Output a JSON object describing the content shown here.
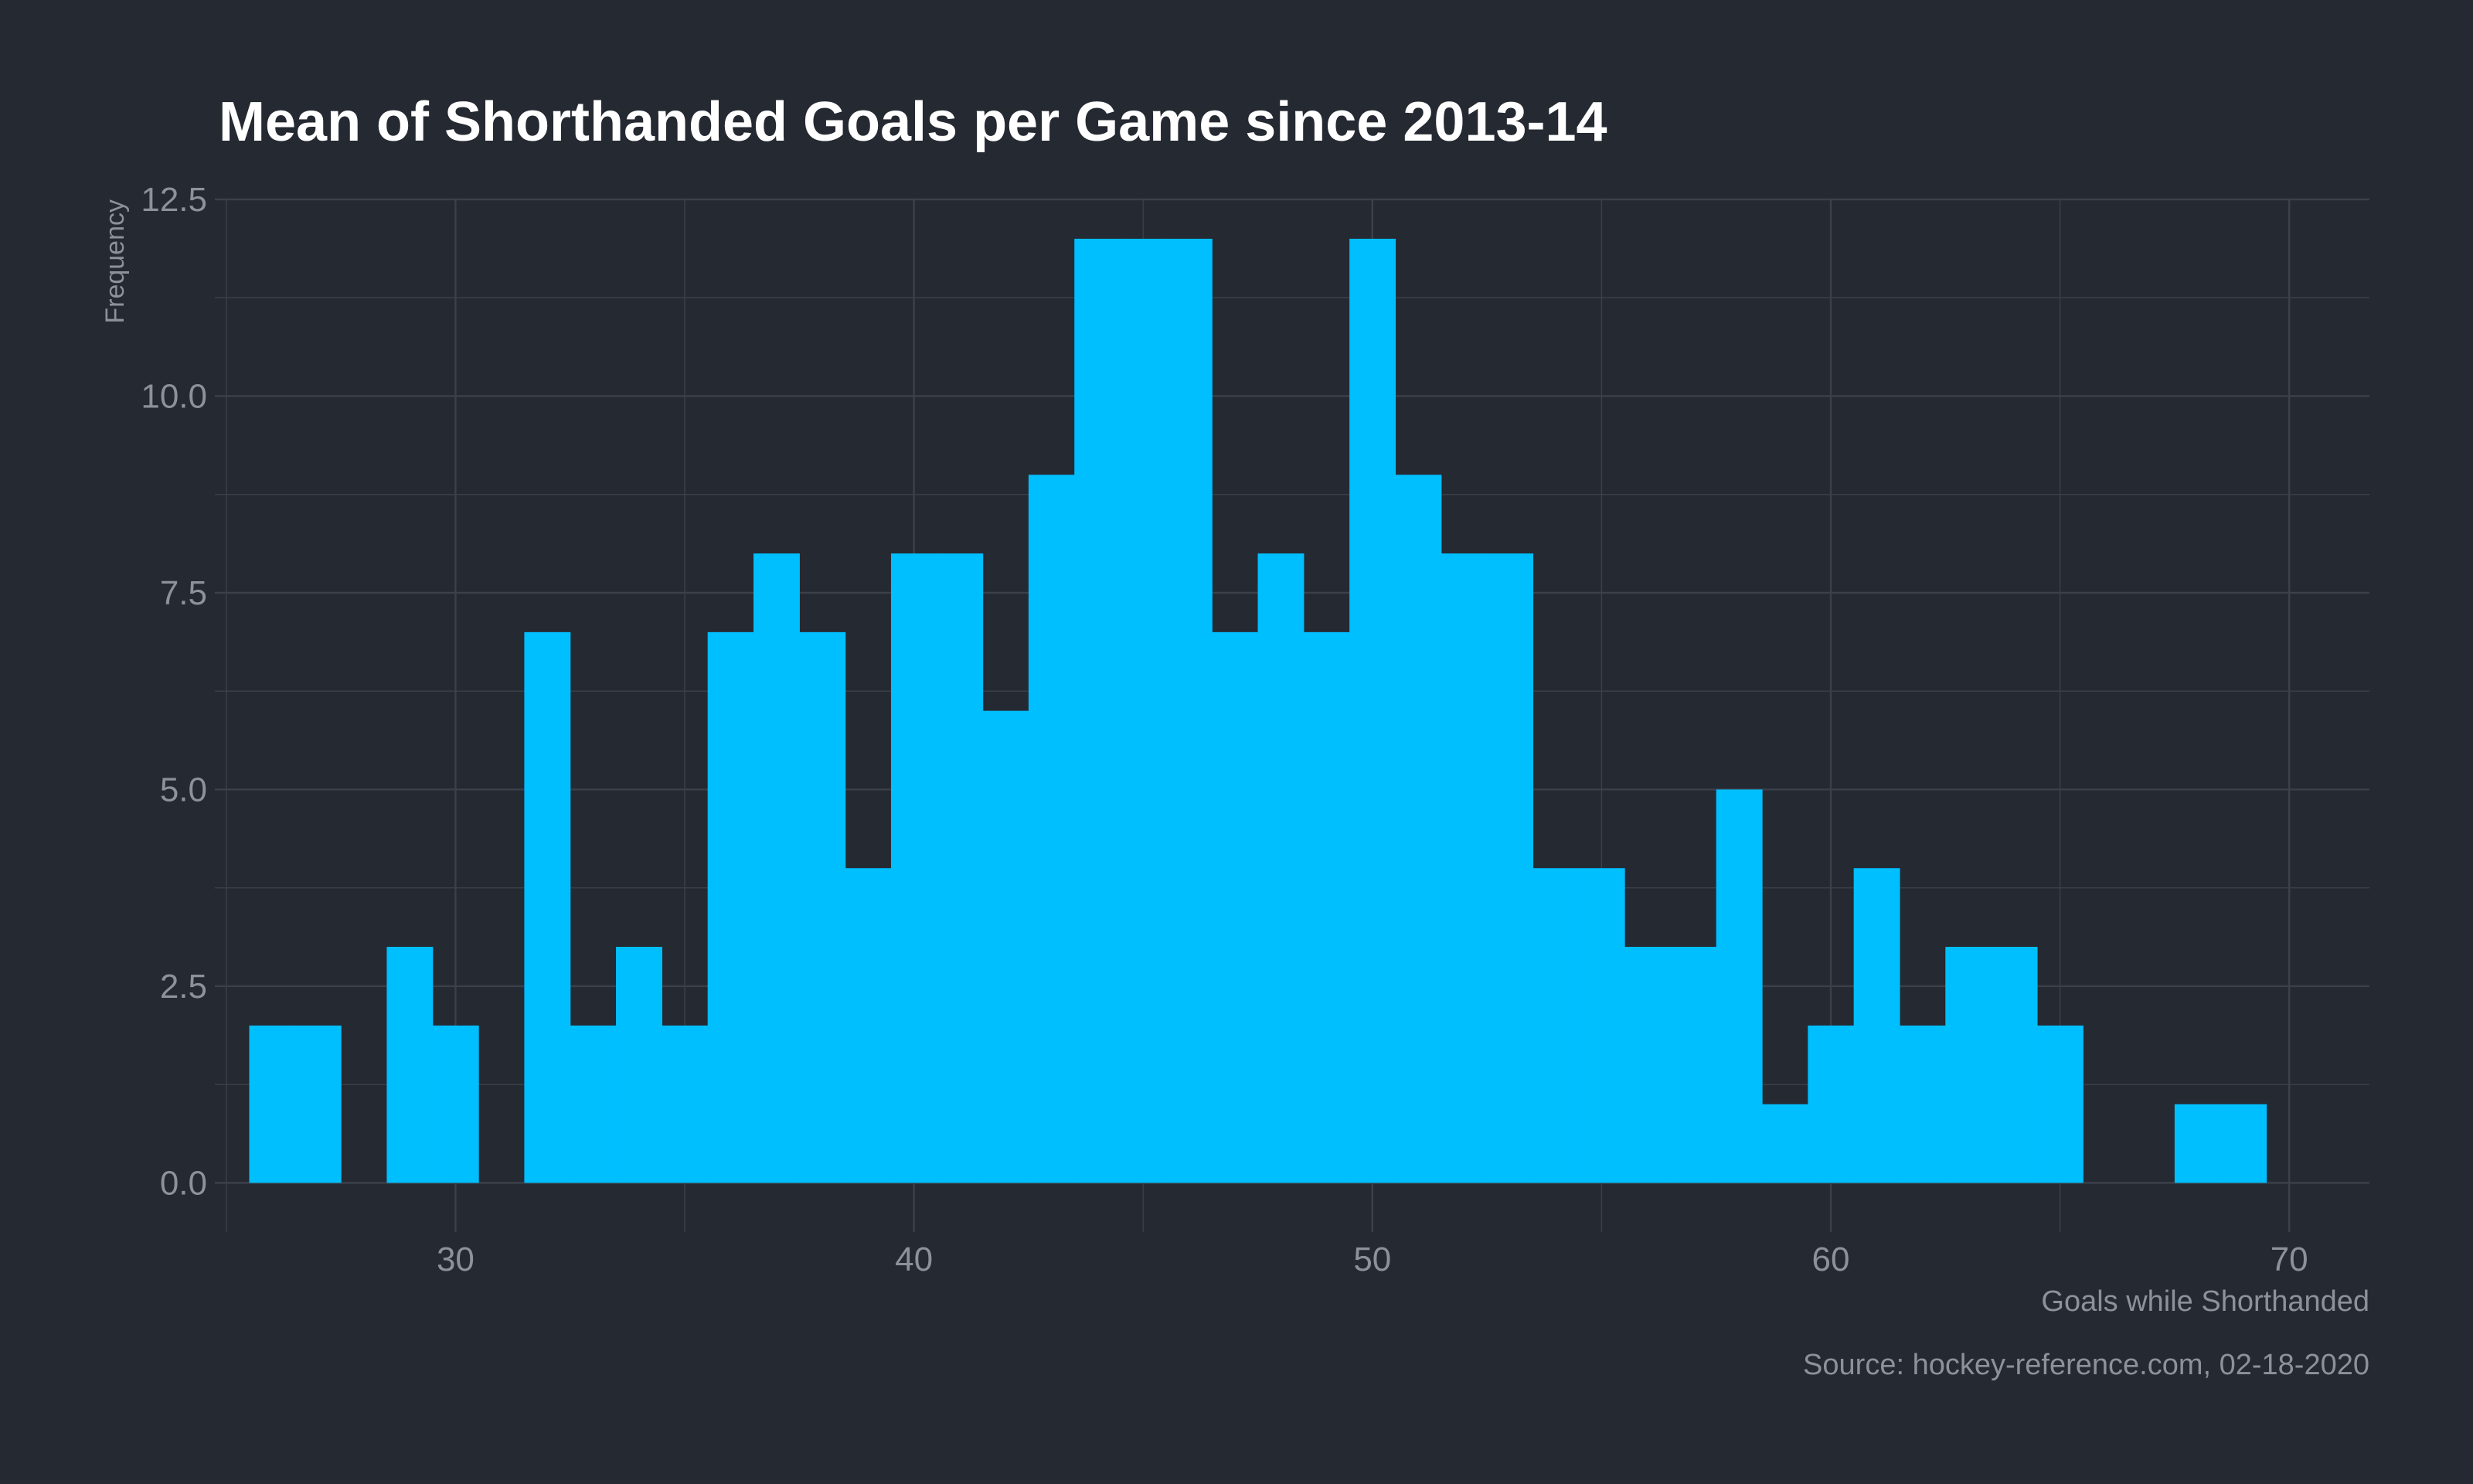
{
  "chart_data": {
    "type": "bar",
    "title": "Mean of Shorthanded Goals per Game since 2013-14",
    "xlabel": "Goals while Shorthanded",
    "ylabel": "Frequency",
    "caption": "Source: hockey-reference.com, 02-18-2020",
    "bin_width": 1,
    "x": [
      26,
      27,
      28,
      29,
      30,
      31,
      32,
      33,
      34,
      35,
      36,
      37,
      38,
      39,
      40,
      41,
      42,
      43,
      44,
      45,
      46,
      47,
      48,
      49,
      50,
      51,
      52,
      53,
      54,
      55,
      56,
      57,
      58,
      59,
      60,
      61,
      62,
      63,
      64,
      65,
      66,
      67,
      68,
      69
    ],
    "values": [
      2,
      2,
      0,
      3,
      2,
      0,
      7,
      2,
      3,
      2,
      7,
      8,
      7,
      4,
      8,
      8,
      6,
      9,
      12,
      12,
      12,
      7,
      8,
      7,
      12,
      9,
      8,
      8,
      4,
      4,
      3,
      3,
      5,
      1,
      2,
      4,
      2,
      3,
      3,
      2,
      0,
      0,
      1,
      1
    ],
    "xlim": [
      24.75,
      71.75
    ],
    "ylim": [
      -0.625,
      12.5
    ],
    "x_ticks": [
      "30",
      "40",
      "50",
      "60",
      "70"
    ],
    "y_ticks": [
      "0.0",
      "2.5",
      "5.0",
      "7.5",
      "10.0",
      "12.5"
    ],
    "grid": true,
    "bar_color": "#00bfff",
    "background": "#252932",
    "grid_color": "#3b404a"
  }
}
